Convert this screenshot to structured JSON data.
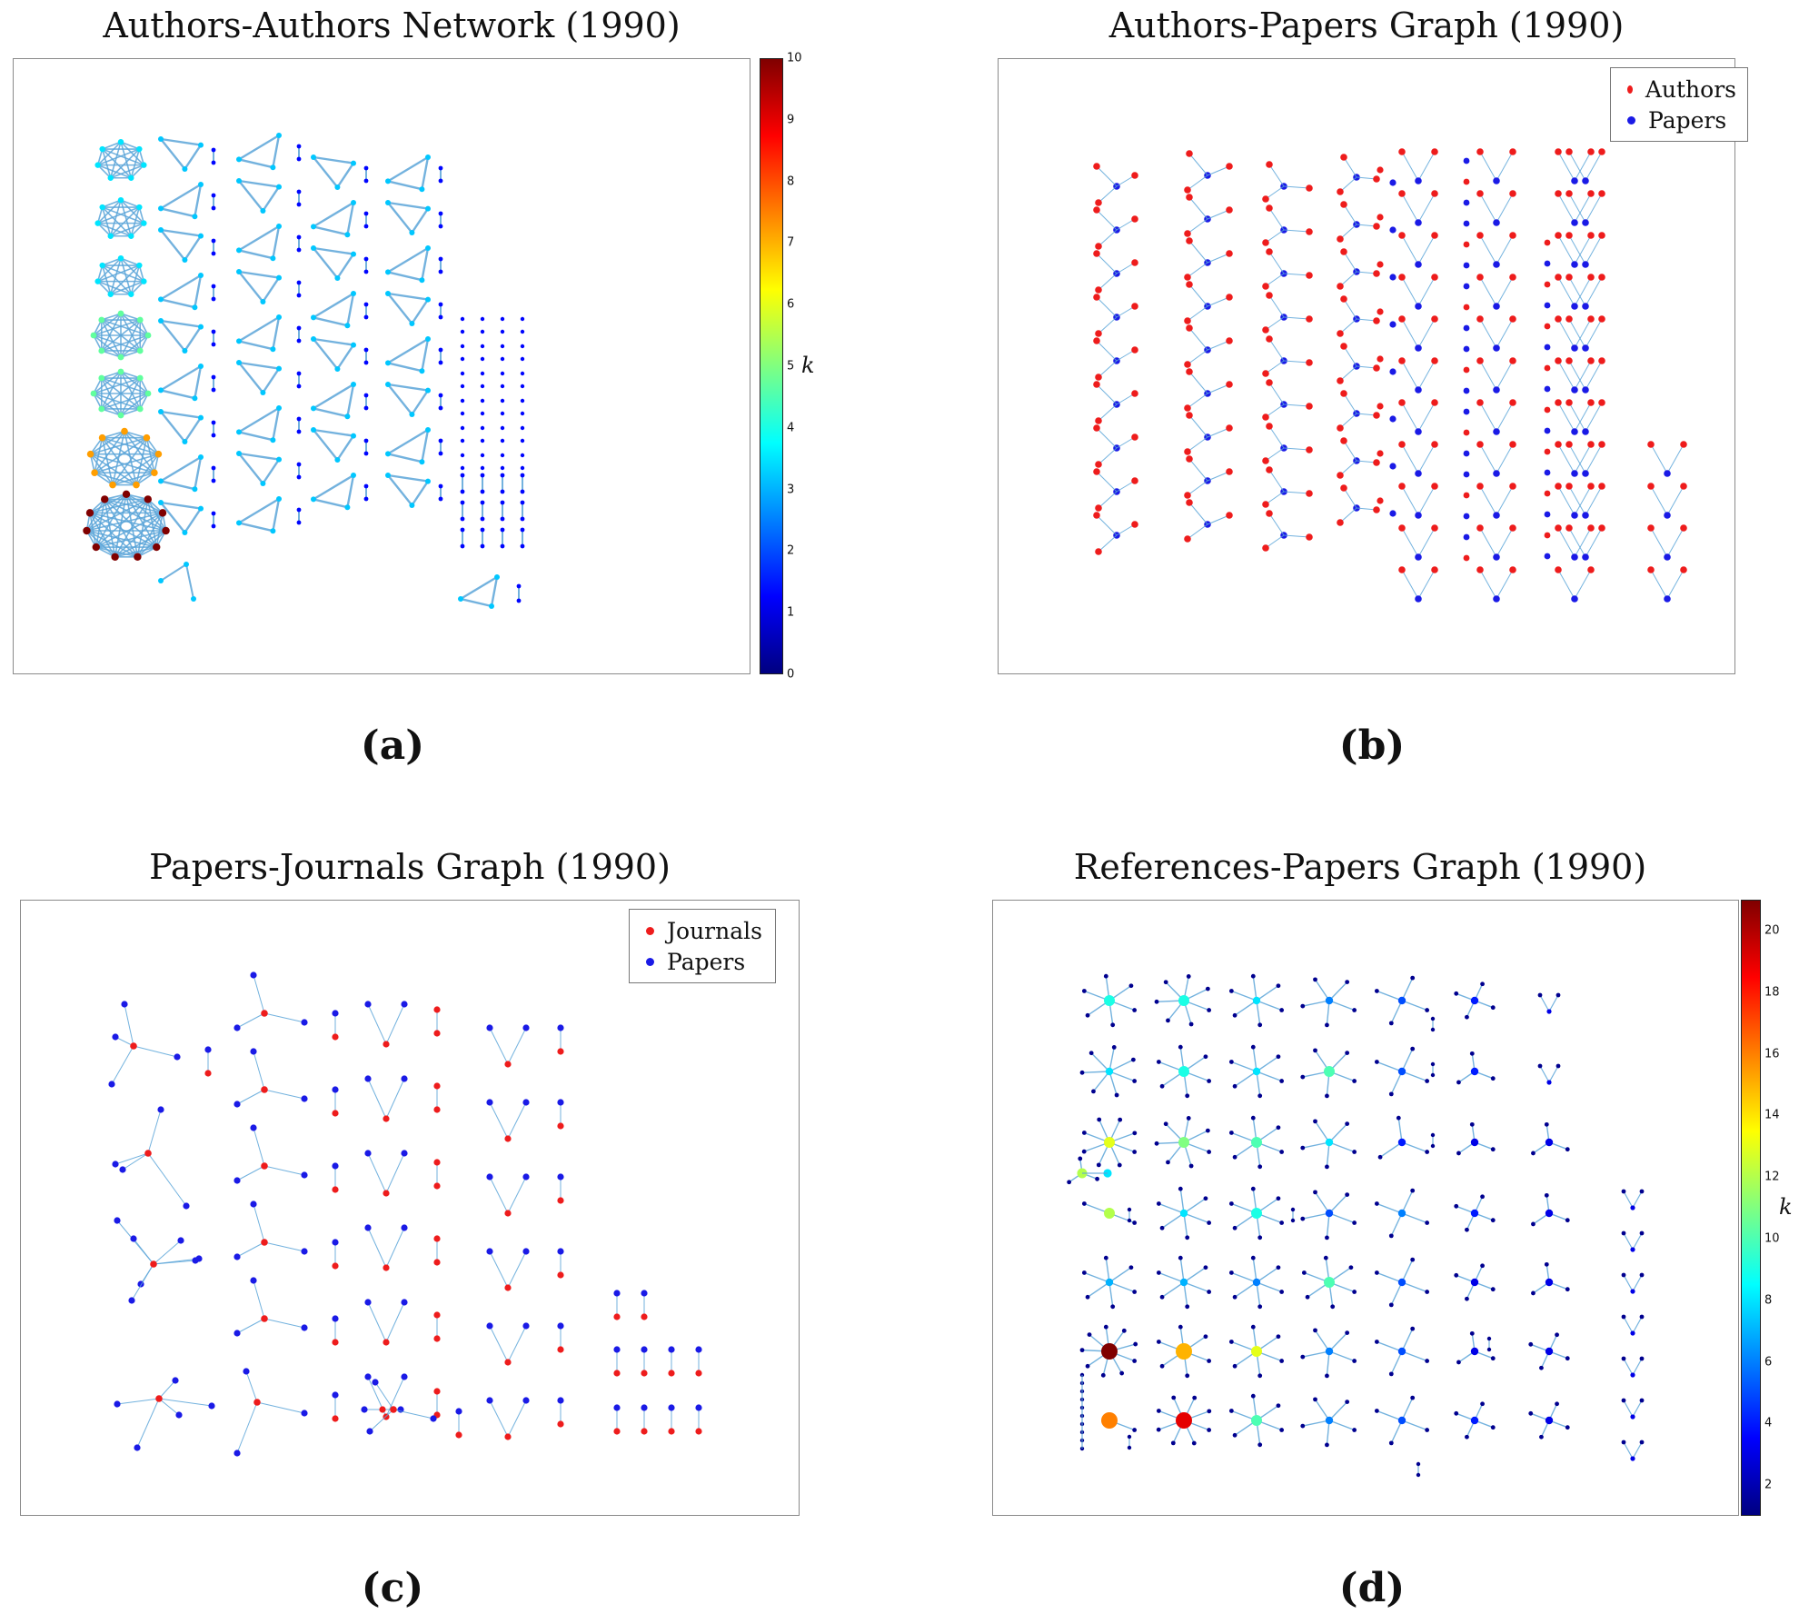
{
  "panels": [
    {
      "id": "a",
      "title": "Authors-Authors Network (1990)",
      "caption": "(a)",
      "colorbar": {
        "label": "k",
        "min": 0,
        "max": 10,
        "ticks": [
          0,
          1,
          2,
          3,
          4,
          5,
          6,
          7,
          8,
          9,
          10
        ]
      }
    },
    {
      "id": "b",
      "title": "Authors-Papers Graph (1990)",
      "caption": "(b)",
      "legend": [
        {
          "label": "Authors",
          "color": "#ee1c1c"
        },
        {
          "label": "Papers",
          "color": "#1a1ae6"
        }
      ]
    },
    {
      "id": "c",
      "title": "Papers-Journals Graph (1990)",
      "caption": "(c)",
      "legend": [
        {
          "label": "Journals",
          "color": "#ee1c1c"
        },
        {
          "label": "Papers",
          "color": "#1a1ae6"
        }
      ]
    },
    {
      "id": "d",
      "title": "References-Papers Graph (1990)",
      "caption": "(d)",
      "colorbar": {
        "label": "k",
        "min": 1,
        "max": 21,
        "ticks": [
          2,
          4,
          6,
          8,
          10,
          12,
          14,
          16,
          18,
          20
        ]
      }
    }
  ],
  "colors": {
    "edge": "#5aa5d8",
    "frame": "#8a8a8a"
  }
}
